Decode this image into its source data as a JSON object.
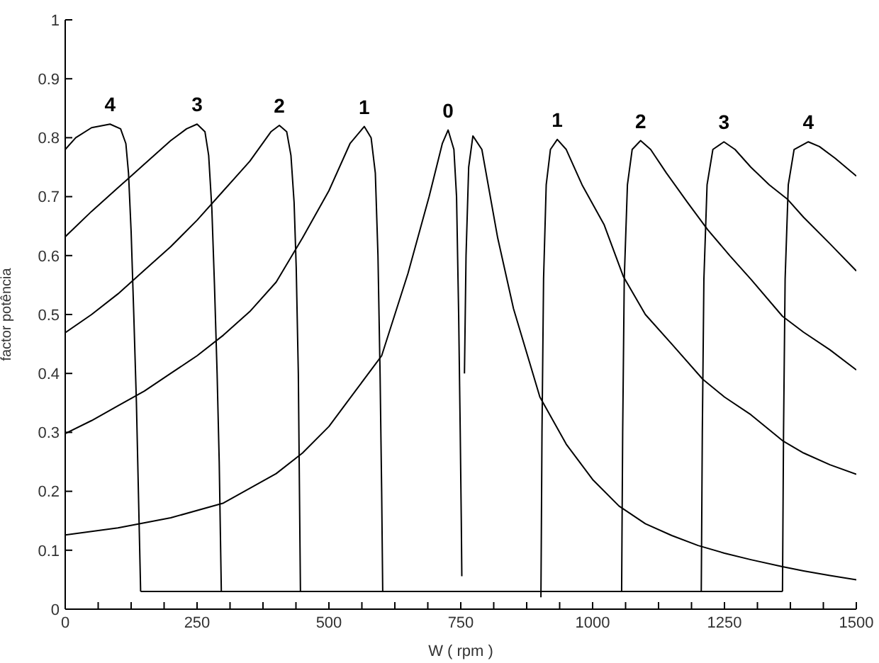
{
  "chart_data": {
    "type": "line",
    "xlabel": "W ( rpm )",
    "ylabel": "factor potência",
    "xlim": [
      0,
      1500
    ],
    "ylim": [
      0,
      1
    ],
    "xticks": [
      0,
      {
        "value": 62.5,
        "label": null
      },
      {
        "value": 125,
        "label": null
      },
      {
        "value": 187.5,
        "label": null
      },
      250,
      {
        "value": 312.5,
        "label": null
      },
      {
        "value": 375,
        "label": null
      },
      {
        "value": 437.5,
        "label": null
      },
      500,
      {
        "value": 562.5,
        "label": null
      },
      {
        "value": 625,
        "label": null
      },
      {
        "value": 687.5,
        "label": null
      },
      750,
      {
        "value": 812.5,
        "label": null
      },
      {
        "value": 875,
        "label": null
      },
      {
        "value": 937.5,
        "label": null
      },
      1000,
      {
        "value": 1062.5,
        "label": null
      },
      {
        "value": 1125,
        "label": null
      },
      {
        "value": 1187.5,
        "label": null
      },
      1250,
      {
        "value": 1312.5,
        "label": null
      },
      {
        "value": 1375,
        "label": null
      },
      {
        "value": 1437.5,
        "label": null
      },
      1500
    ],
    "yticks": [
      0,
      0.1,
      0.2,
      0.3,
      0.4,
      0.5,
      0.6,
      0.7,
      0.8,
      0.9,
      1
    ],
    "series": [
      {
        "color": "#000000",
        "x": [
          0,
          20,
          50,
          85,
          105,
          115,
          120,
          125,
          130,
          135,
          140,
          143
        ],
        "values": [
          0.78,
          0.8,
          0.817,
          0.823,
          0.815,
          0.79,
          0.74,
          0.64,
          0.5,
          0.35,
          0.15,
          0.03
        ]
      },
      {
        "color": "#000000",
        "x": [
          0,
          50,
          100,
          150,
          200,
          230,
          250,
          265,
          272,
          278,
          283,
          288,
          292,
          296
        ],
        "values": [
          0.632,
          0.675,
          0.715,
          0.755,
          0.795,
          0.815,
          0.823,
          0.81,
          0.77,
          0.68,
          0.55,
          0.4,
          0.25,
          0.03
        ]
      },
      {
        "color": "#000000",
        "x": [
          0,
          50,
          100,
          150,
          200,
          250,
          300,
          350,
          390,
          406,
          420,
          428,
          434,
          438,
          442,
          446
        ],
        "values": [
          0.469,
          0.5,
          0.535,
          0.575,
          0.615,
          0.66,
          0.71,
          0.76,
          0.81,
          0.821,
          0.81,
          0.77,
          0.69,
          0.58,
          0.4,
          0.03
        ]
      },
      {
        "color": "#000000",
        "x": [
          0,
          50,
          100,
          150,
          200,
          250,
          300,
          350,
          400,
          450,
          500,
          540,
          567,
          580,
          588,
          593,
          597,
          600,
          602
        ],
        "values": [
          0.298,
          0.32,
          0.345,
          0.37,
          0.4,
          0.43,
          0.465,
          0.505,
          0.555,
          0.63,
          0.71,
          0.79,
          0.819,
          0.8,
          0.74,
          0.6,
          0.4,
          0.2,
          0.03
        ]
      },
      {
        "color": "#000000",
        "x": [
          0,
          100,
          200,
          300,
          400,
          450,
          500,
          550,
          600,
          650,
          690,
          715,
          726,
          737,
          742,
          746,
          749,
          751,
          752
        ],
        "values": [
          0.126,
          0.138,
          0.155,
          0.18,
          0.23,
          0.265,
          0.31,
          0.37,
          0.43,
          0.57,
          0.7,
          0.79,
          0.813,
          0.78,
          0.7,
          0.5,
          0.3,
          0.15,
          0.056
        ]
      },
      {
        "color": "#000000",
        "x": [
          757,
          760,
          765,
          773,
          790,
          800,
          820,
          850,
          880,
          900,
          950,
          1000,
          1050,
          1100,
          1150,
          1200,
          1250,
          1300,
          1360,
          1400,
          1450,
          1500
        ],
        "values": [
          0.4,
          0.6,
          0.75,
          0.803,
          0.78,
          0.73,
          0.63,
          0.51,
          0.42,
          0.36,
          0.28,
          0.22,
          0.175,
          0.145,
          0.125,
          0.108,
          0.095,
          0.084,
          0.072,
          0.065,
          0.057,
          0.05
        ]
      },
      {
        "color": "#000000",
        "x": [
          902,
          904,
          907,
          912,
          920,
          933,
          950,
          980,
          1022,
          1058,
          1100,
          1150,
          1209,
          1250,
          1300,
          1360,
          1400,
          1450,
          1500
        ],
        "values": [
          0.02,
          0.3,
          0.56,
          0.72,
          0.78,
          0.797,
          0.78,
          0.72,
          0.652,
          0.565,
          0.5,
          0.45,
          0.39,
          0.36,
          0.33,
          0.286,
          0.265,
          0.245,
          0.229
        ]
      },
      {
        "color": "#000000",
        "x": [
          1055,
          1057,
          1060,
          1066,
          1075,
          1091,
          1110,
          1140,
          1180,
          1218,
          1260,
          1300,
          1360,
          1400,
          1450,
          1500
        ],
        "values": [
          0.03,
          0.3,
          0.56,
          0.72,
          0.78,
          0.795,
          0.78,
          0.74,
          0.69,
          0.644,
          0.6,
          0.56,
          0.497,
          0.47,
          0.44,
          0.406
        ]
      },
      {
        "color": "#000000",
        "x": [
          1206,
          1208,
          1211,
          1217,
          1228,
          1249,
          1270,
          1300,
          1335,
          1369,
          1400,
          1450,
          1500
        ],
        "values": [
          0.03,
          0.3,
          0.56,
          0.72,
          0.78,
          0.793,
          0.78,
          0.75,
          0.72,
          0.696,
          0.665,
          0.62,
          0.574
        ]
      },
      {
        "color": "#000000",
        "x": [
          1360,
          1362,
          1365,
          1371,
          1382,
          1409,
          1430,
          1460,
          1500
        ],
        "values": [
          0.03,
          0.3,
          0.56,
          0.72,
          0.78,
          0.793,
          0.785,
          0.765,
          0.735
        ]
      },
      {
        "color": "#000000",
        "x": [
          143,
          1360
        ],
        "values": [
          0.03,
          0.03
        ]
      }
    ],
    "annotations": [
      {
        "text": "4",
        "x": 85,
        "y": 0.823
      },
      {
        "text": "3",
        "x": 250,
        "y": 0.823
      },
      {
        "text": "2",
        "x": 406,
        "y": 0.821
      },
      {
        "text": "1",
        "x": 567,
        "y": 0.819
      },
      {
        "text": "0",
        "x": 726,
        "y": 0.813
      },
      {
        "text": "1",
        "x": 933,
        "y": 0.797
      },
      {
        "text": "2",
        "x": 1091,
        "y": 0.795
      },
      {
        "text": "3",
        "x": 1249,
        "y": 0.793
      },
      {
        "text": "4",
        "x": 1409,
        "y": 0.793
      }
    ]
  }
}
